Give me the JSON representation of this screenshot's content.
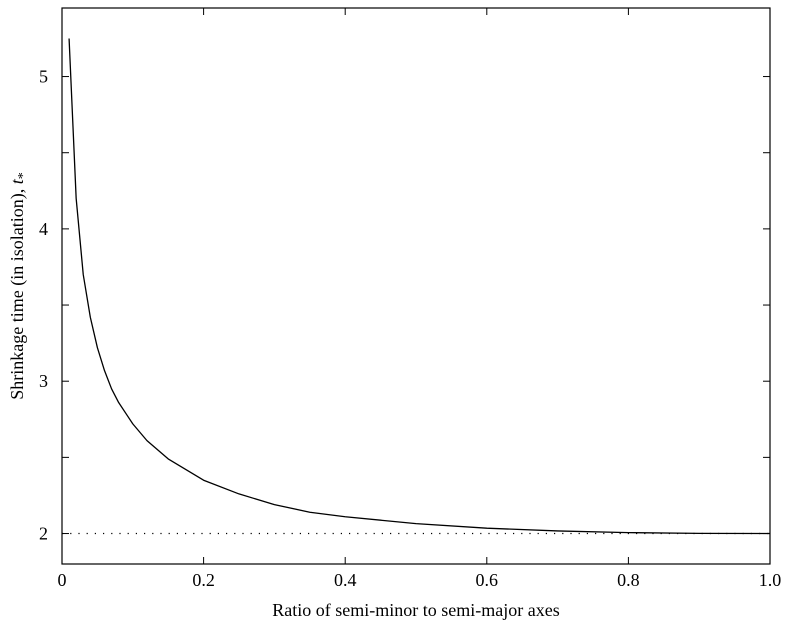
{
  "chart_data": {
    "type": "line",
    "xlabel": "Ratio of semi-minor to semi-major axes",
    "ylabel_text": "Shrinkage time (in isolation), ",
    "ylabel_symbol": "t",
    "ylabel_subscript": "*",
    "xlim": [
      0,
      1.0
    ],
    "ylim": [
      1.8,
      5.45
    ],
    "x_ticks": [
      0,
      0.2,
      0.4,
      0.6,
      0.8,
      1.0
    ],
    "x_tick_labels": [
      "0",
      "0.2",
      "0.4",
      "0.6",
      "0.8",
      "1.0"
    ],
    "y_ticks": [
      2,
      3,
      4,
      5
    ],
    "y_tick_labels": [
      "2",
      "3",
      "4",
      "5"
    ],
    "y_minor_ticks": [
      2.5,
      3.5,
      4.5
    ],
    "grid": false,
    "series": [
      {
        "style": "solid",
        "x": [
          0.01,
          0.02,
          0.03,
          0.04,
          0.05,
          0.06,
          0.07,
          0.08,
          0.1,
          0.12,
          0.15,
          0.2,
          0.25,
          0.3,
          0.35,
          0.4,
          0.5,
          0.6,
          0.7,
          0.8,
          0.9,
          1.0
        ],
        "y": [
          5.25,
          4.2,
          3.7,
          3.42,
          3.22,
          3.07,
          2.95,
          2.86,
          2.72,
          2.61,
          2.49,
          2.35,
          2.26,
          2.19,
          2.14,
          2.11,
          2.065,
          2.035,
          2.017,
          2.006,
          2.001,
          2.0
        ]
      },
      {
        "style": "dotted",
        "x": [
          0,
          1.0
        ],
        "y": [
          2,
          2
        ]
      }
    ]
  }
}
